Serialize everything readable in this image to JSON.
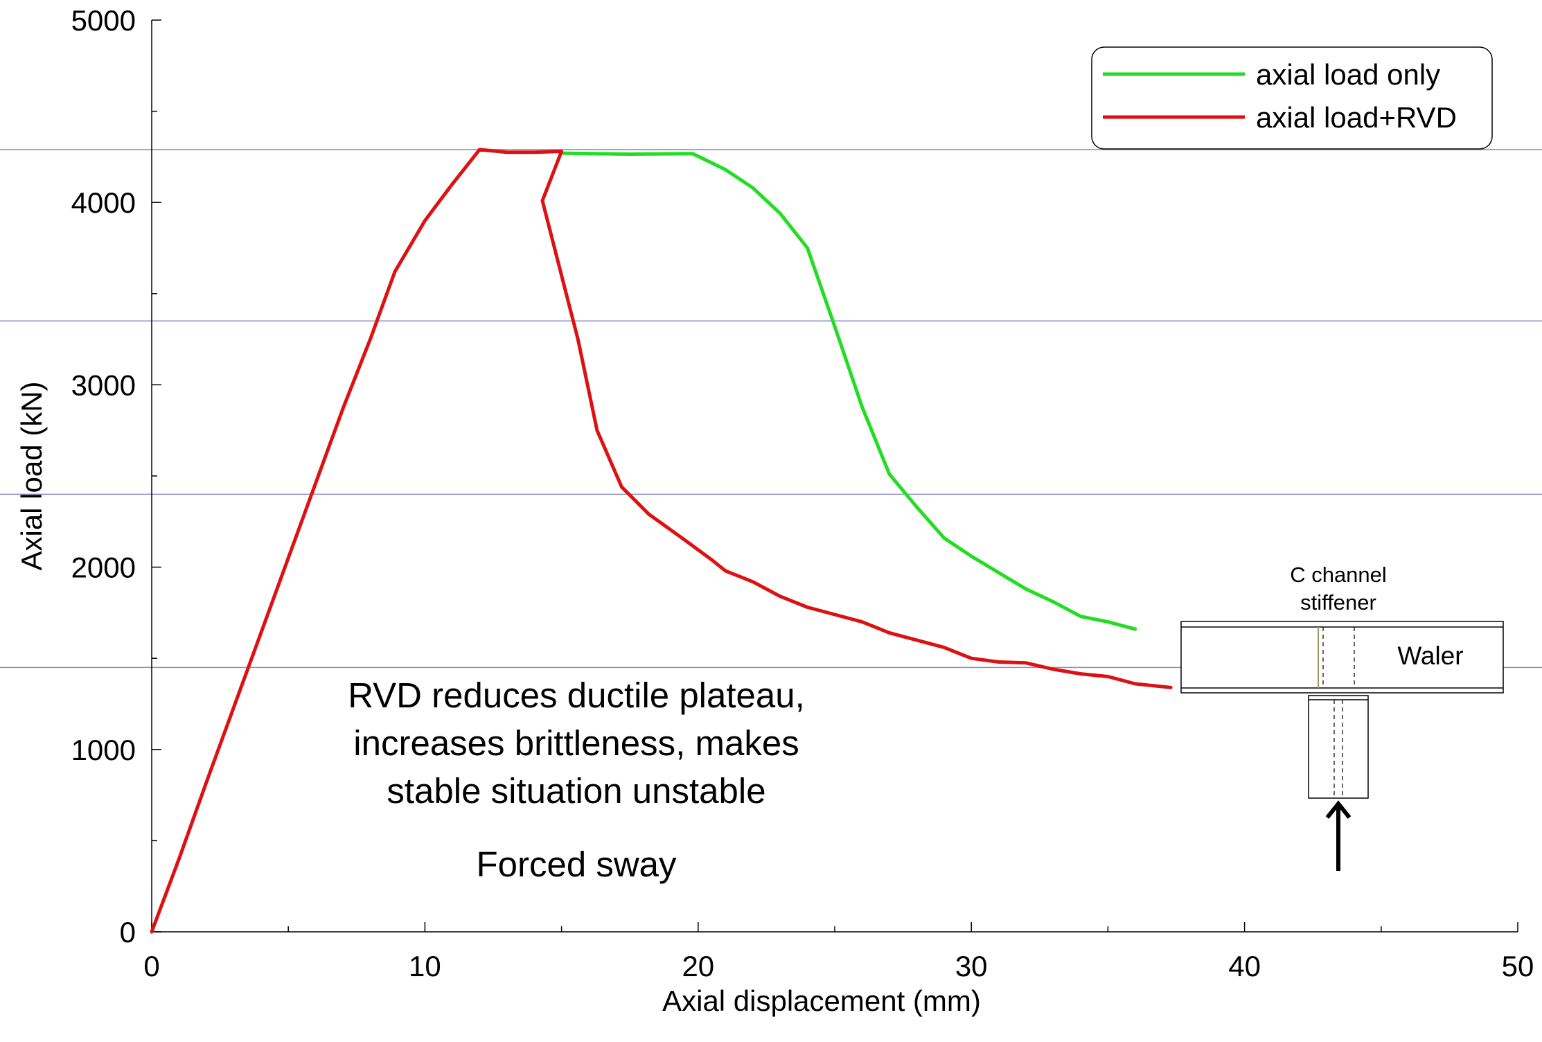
{
  "chart_data": {
    "type": "line",
    "xlabel": "Axial displacement (mm)",
    "ylabel": "Axial load (kN)",
    "xlim": [
      0,
      50
    ],
    "ylim": [
      0,
      5000
    ],
    "x_ticks": [
      0,
      10,
      20,
      30,
      40,
      50
    ],
    "y_ticks": [
      0,
      1000,
      2000,
      3000,
      4000,
      5000
    ],
    "reference_lines_y": [
      4290,
      3350,
      2400,
      1450
    ],
    "legend_position": "top-right",
    "series": [
      {
        "name": "axial load only",
        "color": "#22dd22",
        "x": [
          15.0,
          17.5,
          19.8,
          21.0,
          22.0,
          23.0,
          24.0,
          25.0,
          26.0,
          27.0,
          28.0,
          29.0,
          30.0,
          31.0,
          32.0,
          33.0,
          34.0,
          35.0,
          36.0
        ],
        "y": [
          4270,
          4265,
          4268,
          4180,
          4080,
          3940,
          3750,
          3320,
          2880,
          2510,
          2330,
          2160,
          2060,
          1970,
          1880,
          1810,
          1730,
          1700,
          1660
        ]
      },
      {
        "name": "axial load+RVD",
        "color": "#dd1111",
        "x": [
          0,
          1.0,
          2.0,
          3.0,
          4.0,
          5.0,
          6.0,
          7.0,
          8.0,
          8.9,
          10.0,
          11.0,
          12.0,
          13.0,
          14.0,
          15.0,
          14.3,
          15.0,
          15.6,
          16.3,
          17.2,
          18.2,
          19.5,
          20.5,
          21.0,
          22.0,
          23.0,
          24.0,
          25.0,
          26.0,
          27.0,
          28.0,
          29.0,
          30.0,
          31.0,
          32.0,
          33.0,
          34.0,
          35.0,
          36.0,
          37.3
        ],
        "y": [
          0,
          400,
          820,
          1230,
          1640,
          2050,
          2460,
          2870,
          3250,
          3620,
          3900,
          4100,
          4290,
          4275,
          4275,
          4280,
          4010,
          3600,
          3250,
          2750,
          2440,
          2290,
          2150,
          2040,
          1980,
          1920,
          1840,
          1780,
          1740,
          1700,
          1640,
          1600,
          1560,
          1500,
          1480,
          1475,
          1440,
          1415,
          1400,
          1360,
          1340
        ]
      }
    ],
    "annotations": {
      "line1": "RVD reduces ductile plateau,",
      "line2": "increases brittleness, makes",
      "line3": "stable situation unstable",
      "line4": "Forced sway"
    },
    "inset": {
      "label_line1": "C channel",
      "label_line2": "stiffener",
      "waler": "Waler"
    }
  }
}
